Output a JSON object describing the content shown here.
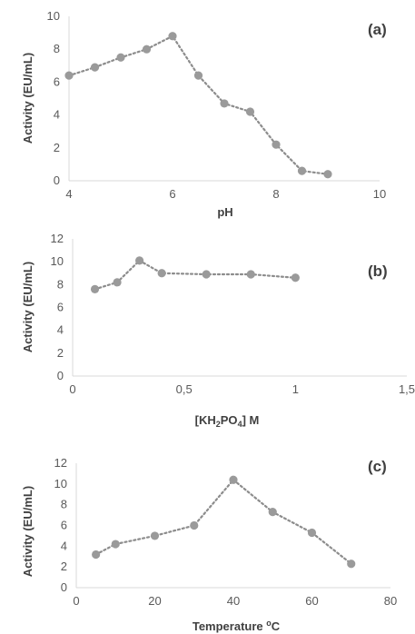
{
  "chart_data": [
    {
      "type": "line",
      "panel_label": "(a)",
      "xlabel": "pH",
      "ylabel": "Activity  (EU/mL)",
      "xlim": [
        4,
        10
      ],
      "ylim": [
        0,
        10
      ],
      "x_ticks": [
        "4",
        "6",
        "8",
        "10"
      ],
      "y_ticks": [
        "0",
        "2",
        "4",
        "6",
        "8",
        "10"
      ],
      "x": [
        4,
        4.5,
        5,
        5.5,
        6,
        6.5,
        7,
        7.5,
        8,
        8.5,
        9
      ],
      "values": [
        6.4,
        6.9,
        7.5,
        8.0,
        8.8,
        6.4,
        4.7,
        4.2,
        2.2,
        0.6,
        0.4
      ],
      "grid": false,
      "color": "#9a9a9a"
    },
    {
      "type": "line",
      "panel_label": "(b)",
      "xlabel_main": "[KH",
      "xlabel_sub1": "2",
      "xlabel_mid": "PO",
      "xlabel_sub2": "4",
      "xlabel_end": "] M",
      "ylabel": "Activity  (EU/mL)",
      "xlim": [
        0,
        1.5
      ],
      "ylim": [
        0,
        12
      ],
      "x_ticks": [
        "0",
        "0,5",
        "1",
        "1,5"
      ],
      "y_ticks": [
        "0",
        "2",
        "4",
        "6",
        "8",
        "10",
        "12"
      ],
      "x": [
        0.1,
        0.2,
        0.3,
        0.4,
        0.6,
        0.8,
        1.0
      ],
      "values": [
        7.6,
        8.2,
        10.1,
        9.0,
        8.9,
        8.9,
        8.6
      ],
      "grid": false,
      "color": "#9a9a9a"
    },
    {
      "type": "line",
      "panel_label": "(c)",
      "xlabel_main": "Temperature ",
      "xlabel_sup": "o",
      "xlabel_end": "C",
      "ylabel": "Activity  (EU/mL)",
      "xlim": [
        0,
        80
      ],
      "ylim": [
        0,
        12
      ],
      "x_ticks": [
        "0",
        "20",
        "40",
        "60",
        "80"
      ],
      "y_ticks": [
        "0",
        "2",
        "4",
        "6",
        "8",
        "10",
        "12"
      ],
      "x": [
        5,
        10,
        20,
        30,
        40,
        50,
        60,
        70
      ],
      "values": [
        3.2,
        4.2,
        5.0,
        6.0,
        10.4,
        7.3,
        5.3,
        2.3
      ],
      "grid": false,
      "color": "#9a9a9a"
    }
  ]
}
